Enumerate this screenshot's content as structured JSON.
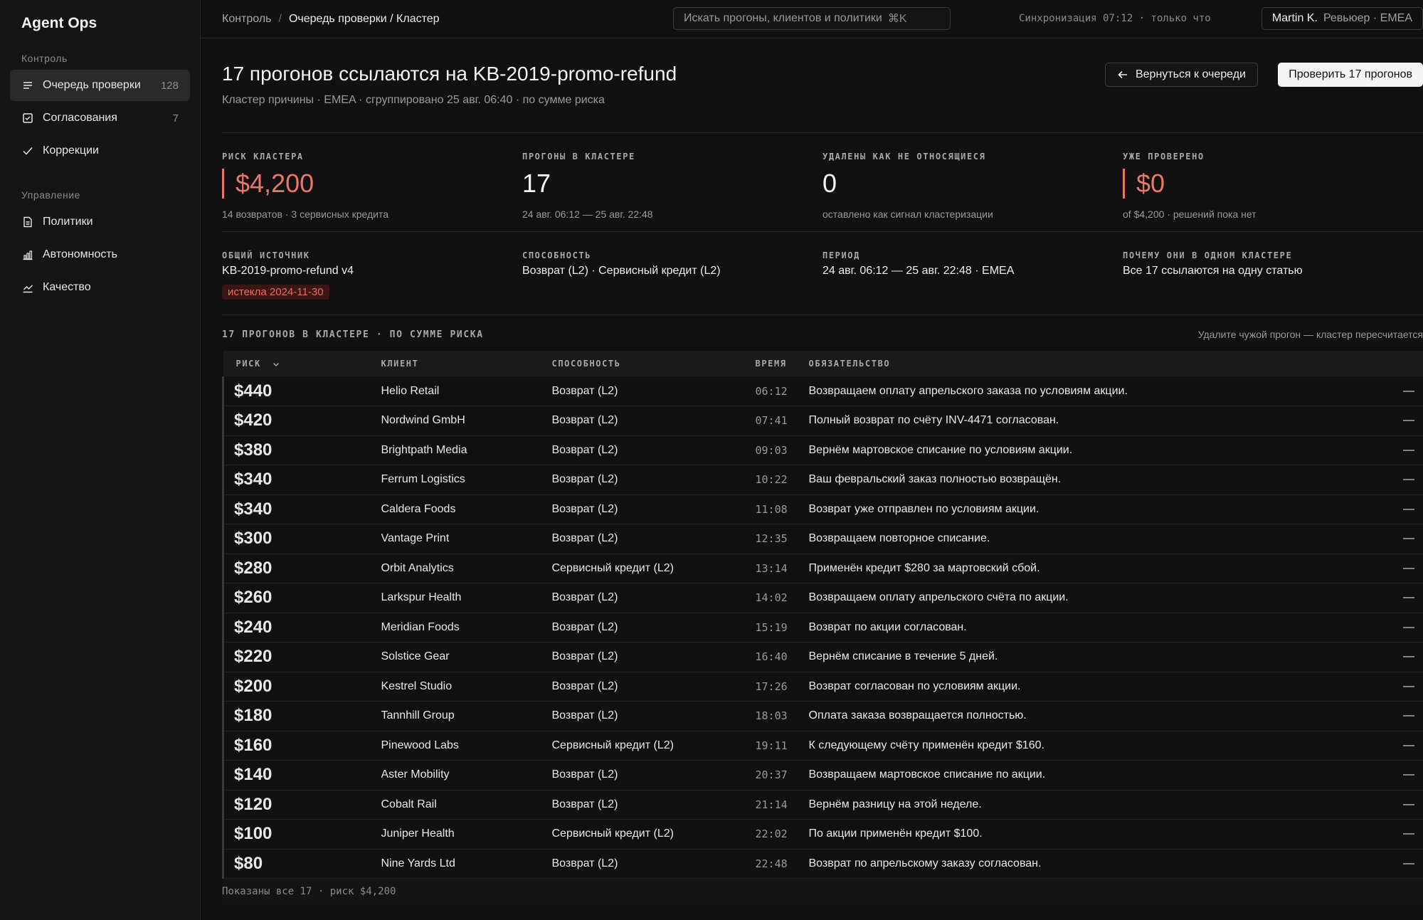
{
  "sidebar": {
    "brand": "Agent Ops",
    "sections": [
      {
        "title": "Контроль",
        "items": [
          {
            "label": "Очередь проверки",
            "count": "128",
            "icon": "list-icon",
            "active": true
          },
          {
            "label": "Согласования",
            "count": "7",
            "icon": "checkbox-icon",
            "active": false
          },
          {
            "label": "Коррекции",
            "count": "",
            "icon": "check-icon",
            "active": false
          }
        ]
      },
      {
        "title": "Управление",
        "items": [
          {
            "label": "Политики",
            "count": "",
            "icon": "document-icon",
            "active": false
          },
          {
            "label": "Автономность",
            "count": "",
            "icon": "bar-chart-icon",
            "active": false
          },
          {
            "label": "Качество",
            "count": "",
            "icon": "trend-icon",
            "active": false
          }
        ]
      }
    ]
  },
  "topbar": {
    "crumb_root": "Контроль",
    "crumb_sep": "/",
    "crumb_current": "Очередь проверки / Кластер",
    "search_placeholder": "Искать прогоны, клиентов и политики",
    "search_shortcut": "⌘K",
    "sync": "Синхронизация 07:12 · только что",
    "user_name": "Martin K.",
    "user_role": "Ревьюер · EMEA"
  },
  "header": {
    "title": "17 прогонов ссылаются на KB-2019-promo-refund",
    "subtitle": "Кластер причины · EMEA · сгруппировано 25 авг. 06:40 · по сумме риска",
    "back_button": "Вернуться к очереди",
    "primary_button": "Проверить 17 прогонов"
  },
  "stats": [
    {
      "label": "РИСК КЛАСТЕРА",
      "value": "$4,200",
      "note": "14 возвратов · 3 сервисных кредита",
      "accent": true
    },
    {
      "label": "ПРОГОНЫ В КЛАСТЕРЕ",
      "value": "17",
      "note": "24 авг. 06:12 — 25 авг. 22:48",
      "accent": false
    },
    {
      "label": "УДАЛЕНЫ КАК НЕ ОТНОСЯЩИЕСЯ",
      "value": "0",
      "note": "оставлено как сигнал кластеризации",
      "accent": false
    },
    {
      "label": "УЖЕ ПРОВЕРЕНО",
      "value": "$0",
      "note": "of $4,200 · решений пока нет",
      "accent": true
    }
  ],
  "meta": [
    {
      "label": "ОБЩИЙ ИСТОЧНИК",
      "value": "KB-2019-promo-refund v4",
      "badge": "истекла 2024-11-30"
    },
    {
      "label": "СПОСОБНОСТЬ",
      "value": "Возврат (L2) · Сервисный кредит (L2)",
      "badge": ""
    },
    {
      "label": "ПЕРИОД",
      "value": "24 авг. 06:12 — 25 авг. 22:48 · EMEA",
      "badge": ""
    },
    {
      "label": "ПОЧЕМУ ОНИ В ОДНОМ КЛАСТЕРЕ",
      "value": "Все 17 ссылаются на одну статью",
      "badge": ""
    }
  ],
  "list": {
    "title": "17 ПРОГОНОВ В КЛАСТЕРЕ · ПО СУММЕ РИСКА",
    "hint": "Удалите чужой прогон — кластер пересчитается",
    "columns": {
      "risk": "РИСК",
      "client": "КЛИЕНТ",
      "capability": "СПОСОБНОСТЬ",
      "time": "ВРЕМЯ",
      "commitment": "ОБЯЗАТЕЛЬСТВО"
    },
    "rows": [
      {
        "risk": "$440",
        "client": "Helio Retail",
        "capability": "Возврат (L2)",
        "time": "06:12",
        "commitment": "Возвращаем оплату апрельского заказа по условиям акции.",
        "action": "—"
      },
      {
        "risk": "$420",
        "client": "Nordwind GmbH",
        "capability": "Возврат (L2)",
        "time": "07:41",
        "commitment": "Полный возврат по счёту INV-4471 согласован.",
        "action": "—"
      },
      {
        "risk": "$380",
        "client": "Brightpath Media",
        "capability": "Возврат (L2)",
        "time": "09:03",
        "commitment": "Вернём мартовское списание по условиям акции.",
        "action": "—"
      },
      {
        "risk": "$340",
        "client": "Ferrum Logistics",
        "capability": "Возврат (L2)",
        "time": "10:22",
        "commitment": "Ваш февральский заказ полностью возвращён.",
        "action": "—"
      },
      {
        "risk": "$340",
        "client": "Caldera Foods",
        "capability": "Возврат (L2)",
        "time": "11:08",
        "commitment": "Возврат уже отправлен по условиям акции.",
        "action": "—"
      },
      {
        "risk": "$300",
        "client": "Vantage Print",
        "capability": "Возврат (L2)",
        "time": "12:35",
        "commitment": "Возвращаем повторное списание.",
        "action": "—"
      },
      {
        "risk": "$280",
        "client": "Orbit Analytics",
        "capability": "Сервисный кредит (L2)",
        "time": "13:14",
        "commitment": "Применён кредит $280 за мартовский сбой.",
        "action": "—"
      },
      {
        "risk": "$260",
        "client": "Larkspur Health",
        "capability": "Возврат (L2)",
        "time": "14:02",
        "commitment": "Возвращаем оплату апрельского счёта по акции.",
        "action": "—"
      },
      {
        "risk": "$240",
        "client": "Meridian Foods",
        "capability": "Возврат (L2)",
        "time": "15:19",
        "commitment": "Возврат по акции согласован.",
        "action": "—"
      },
      {
        "risk": "$220",
        "client": "Solstice Gear",
        "capability": "Возврат (L2)",
        "time": "16:40",
        "commitment": "Вернём списание в течение 5 дней.",
        "action": "—"
      },
      {
        "risk": "$200",
        "client": "Kestrel Studio",
        "capability": "Возврат (L2)",
        "time": "17:26",
        "commitment": "Возврат согласован по условиям акции.",
        "action": "—"
      },
      {
        "risk": "$180",
        "client": "Tannhill Group",
        "capability": "Возврат (L2)",
        "time": "18:03",
        "commitment": "Оплата заказа возвращается полностью.",
        "action": "—"
      },
      {
        "risk": "$160",
        "client": "Pinewood Labs",
        "capability": "Сервисный кредит (L2)",
        "time": "19:11",
        "commitment": "К следующему счёту применён кредит $160.",
        "action": "—"
      },
      {
        "risk": "$140",
        "client": "Aster Mobility",
        "capability": "Возврат (L2)",
        "time": "20:37",
        "commitment": "Возвращаем мартовское списание по акции.",
        "action": "—"
      },
      {
        "risk": "$120",
        "client": "Cobalt Rail",
        "capability": "Возврат (L2)",
        "time": "21:14",
        "commitment": "Вернём разницу на этой неделе.",
        "action": "—"
      },
      {
        "risk": "$100",
        "client": "Juniper Health",
        "capability": "Сервисный кредит (L2)",
        "time": "22:02",
        "commitment": "По акции применён кредит $100.",
        "action": "—"
      },
      {
        "risk": "$80",
        "client": "Nine Yards Ltd",
        "capability": "Возврат (L2)",
        "time": "22:48",
        "commitment": "Возврат по апрельскому заказу согласован.",
        "action": "—"
      }
    ],
    "footer": "Показаны все 17 · риск $4,200"
  },
  "colors": {
    "accent": "#e8776a",
    "badge_text": "#ef6a5c",
    "badge_bg": "#3a1614",
    "background": "#111111"
  }
}
